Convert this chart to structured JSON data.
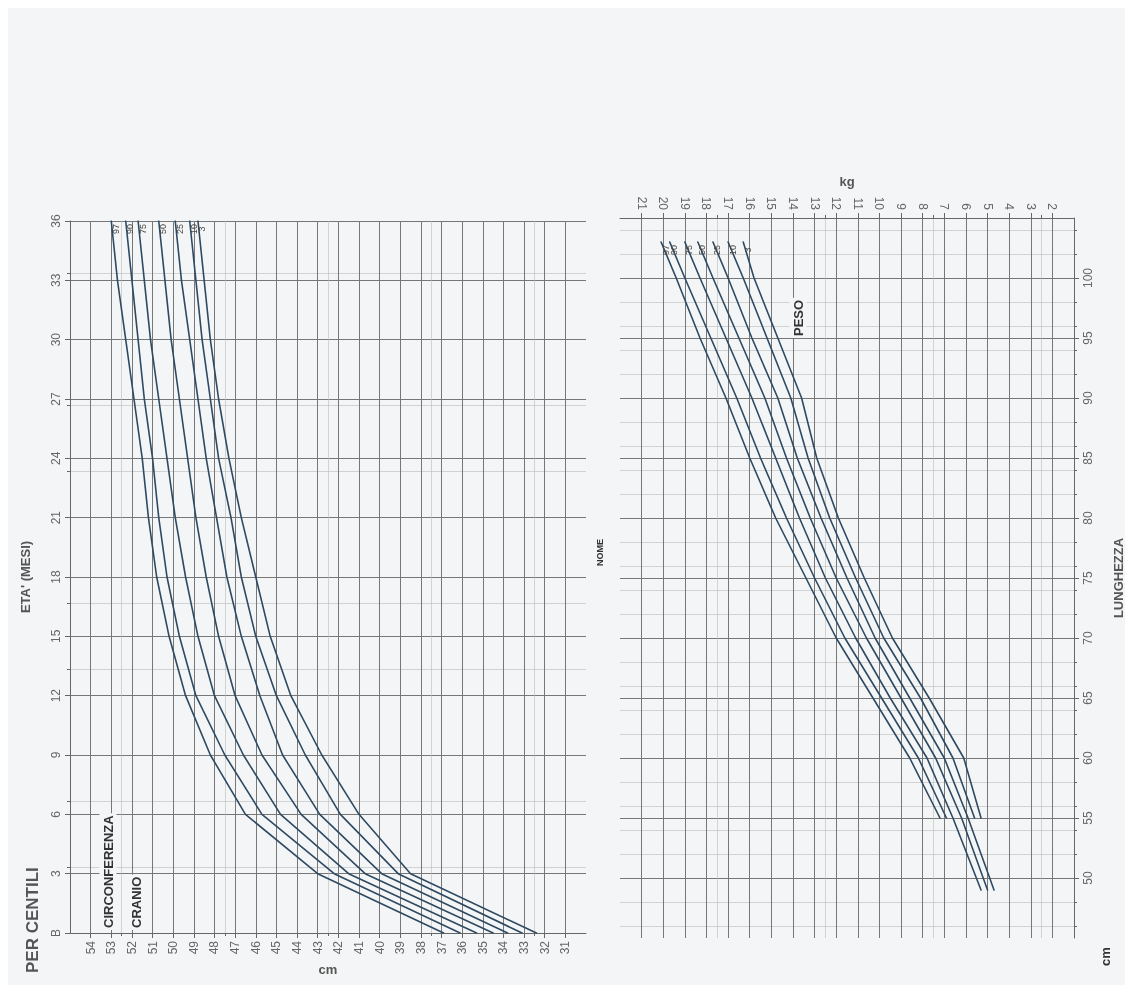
{
  "chart_data": [
    {
      "type": "line",
      "title": "PER CENTILI",
      "xlabel": "cm",
      "ylabel": "ETA' (MESI)",
      "annotations": [
        "NOME",
        "CIRCONFERENZA",
        "CRANIO"
      ],
      "xlim": [
        55,
        30
      ],
      "xticks": [
        31,
        32,
        33,
        34,
        35,
        36,
        37,
        38,
        39,
        40,
        41,
        42,
        43,
        44,
        45,
        46,
        47,
        48,
        49,
        50,
        51,
        52,
        53,
        54
      ],
      "ylim": [
        0,
        36
      ],
      "yticks": [
        {
          "value": 0,
          "label": "B"
        },
        3,
        6,
        9,
        12,
        15,
        18,
        21,
        24,
        27,
        30,
        33,
        36
      ],
      "grid": true,
      "legend": false,
      "marker": "none",
      "line_style": "solid",
      "series": [
        {
          "name": "97",
          "color": "#2e4a62",
          "x": [
            36.9,
            43.0,
            46.5,
            48.2,
            49.4,
            50.2,
            50.8,
            51.2,
            51.5,
            51.9,
            52.3,
            52.7,
            53.0
          ],
          "values": [
            0,
            3,
            6,
            9,
            12,
            15,
            18,
            21,
            24,
            27,
            30,
            33,
            36
          ]
        },
        {
          "name": "90",
          "color": "#2e4a62",
          "x": [
            36.1,
            42.2,
            45.7,
            47.5,
            48.9,
            49.7,
            50.3,
            50.7,
            51.0,
            51.4,
            51.7,
            52.0,
            52.3
          ],
          "values": [
            0,
            3,
            6,
            9,
            12,
            15,
            18,
            21,
            24,
            27,
            30,
            33,
            36
          ]
        },
        {
          "name": "75",
          "color": "#2e4a62",
          "x": [
            35.3,
            41.5,
            44.8,
            46.6,
            48.0,
            48.8,
            49.4,
            49.9,
            50.3,
            50.7,
            51.1,
            51.4,
            51.7
          ],
          "values": [
            0,
            3,
            6,
            9,
            12,
            15,
            18,
            21,
            24,
            27,
            30,
            33,
            36
          ]
        },
        {
          "name": "50",
          "color": "#2e4a62",
          "x": [
            34.5,
            40.7,
            43.8,
            45.7,
            47.0,
            47.8,
            48.4,
            48.9,
            49.3,
            49.7,
            50.1,
            50.4,
            50.7
          ],
          "values": [
            0,
            3,
            6,
            9,
            12,
            15,
            18,
            21,
            24,
            27,
            30,
            33,
            36
          ]
        },
        {
          "name": "25",
          "color": "#2e4a62",
          "x": [
            33.8,
            39.9,
            42.9,
            44.7,
            45.8,
            46.7,
            47.4,
            47.9,
            48.4,
            48.8,
            49.2,
            49.6,
            49.9
          ],
          "values": [
            0,
            3,
            6,
            9,
            12,
            15,
            18,
            21,
            24,
            27,
            30,
            33,
            36
          ]
        },
        {
          "name": "10",
          "color": "#2e4a62",
          "x": [
            33.1,
            39.1,
            41.9,
            43.6,
            45.0,
            46.0,
            46.7,
            47.2,
            47.8,
            48.2,
            48.6,
            48.9,
            49.2
          ],
          "values": [
            0,
            3,
            6,
            9,
            12,
            15,
            18,
            21,
            24,
            27,
            30,
            33,
            36
          ]
        },
        {
          "name": "3",
          "color": "#2e4a62",
          "x": [
            32.4,
            38.5,
            41.0,
            42.8,
            44.3,
            45.3,
            46.0,
            46.7,
            47.3,
            47.8,
            48.2,
            48.5,
            48.8
          ],
          "values": [
            0,
            3,
            6,
            9,
            12,
            15,
            18,
            21,
            24,
            27,
            30,
            33,
            36
          ]
        }
      ]
    },
    {
      "type": "line",
      "xlabel": "kg",
      "ylabel": "LUNGHEZZA",
      "annotations": [
        "PESO",
        "cm"
      ],
      "xlim": [
        22,
        1
      ],
      "xticks": [
        2,
        3,
        4,
        5,
        6,
        7,
        8,
        9,
        10,
        11,
        12,
        13,
        14,
        15,
        16,
        17,
        18,
        19,
        20,
        21
      ],
      "ylim": [
        45,
        105
      ],
      "yticks": [
        50,
        55,
        60,
        65,
        70,
        75,
        80,
        85,
        90,
        95,
        100
      ],
      "grid": true,
      "legend": false,
      "marker": "none",
      "line_style": "solid",
      "series": [
        {
          "name": "97",
          "color": "#2e4a62",
          "x": [
            7.2,
            8.6,
            10.3,
            12.0,
            13.4,
            14.8,
            16.0,
            17.1,
            18.3,
            19.4,
            20.1
          ],
          "values": [
            55,
            60,
            65,
            70,
            75,
            80,
            85,
            90,
            95,
            100,
            103
          ]
        },
        {
          "name": "90",
          "color": "#2e4a62",
          "x": [
            6.9,
            8.2,
            9.9,
            11.6,
            13.0,
            14.3,
            15.5,
            16.6,
            17.8,
            19.0,
            19.7
          ],
          "values": [
            55,
            60,
            65,
            70,
            75,
            80,
            85,
            90,
            95,
            100,
            103
          ]
        },
        {
          "name": "75",
          "color": "#2e4a62",
          "x": [
            5.3,
            6.6,
            7.8,
            9.5,
            11.1,
            12.5,
            13.7,
            14.8,
            15.9,
            17.1,
            18.3,
            19.0
          ],
          "values": [
            49,
            55,
            60,
            65,
            70,
            75,
            80,
            85,
            90,
            95,
            100,
            103
          ]
        },
        {
          "name": "50",
          "color": "#2e4a62",
          "x": [
            5.0,
            6.2,
            7.4,
            9.0,
            10.6,
            12.0,
            13.2,
            14.3,
            15.3,
            16.5,
            17.7,
            18.4
          ],
          "values": [
            49,
            55,
            60,
            65,
            70,
            75,
            80,
            85,
            90,
            95,
            100,
            103
          ]
        },
        {
          "name": "25",
          "color": "#2e4a62",
          "x": [
            4.7,
            5.9,
            7.0,
            8.6,
            10.2,
            11.5,
            12.7,
            13.8,
            14.7,
            15.9,
            17.0,
            17.7
          ],
          "values": [
            49,
            55,
            60,
            65,
            70,
            75,
            80,
            85,
            90,
            95,
            100,
            103
          ]
        },
        {
          "name": "10",
          "color": "#2e4a62",
          "x": [
            5.6,
            6.6,
            8.1,
            9.8,
            11.1,
            12.3,
            13.3,
            14.1,
            15.2,
            16.3,
            17.0
          ],
          "values": [
            55,
            60,
            65,
            70,
            75,
            80,
            85,
            90,
            95,
            100,
            103
          ]
        },
        {
          "name": "3",
          "color": "#2e4a62",
          "x": [
            5.3,
            6.1,
            7.7,
            9.4,
            10.7,
            11.9,
            12.9,
            13.6,
            14.7,
            15.8,
            16.3
          ],
          "values": [
            55,
            60,
            65,
            70,
            75,
            80,
            85,
            90,
            95,
            100,
            103
          ]
        }
      ]
    }
  ]
}
